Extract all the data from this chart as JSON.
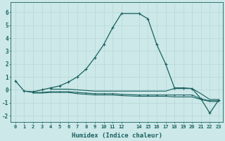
{
  "xlabel": "Humidex (Indice chaleur)",
  "background_color": "#cce8e8",
  "grid_color": "#b8d8d8",
  "line_color": "#1a6060",
  "xlim": [
    -0.5,
    23.5
  ],
  "ylim": [
    -2.5,
    6.8
  ],
  "xticks": [
    0,
    1,
    2,
    3,
    4,
    5,
    6,
    7,
    8,
    9,
    10,
    11,
    12,
    14,
    15,
    16,
    17,
    18,
    19,
    20,
    21,
    22,
    23
  ],
  "yticks": [
    -2,
    -1,
    0,
    1,
    2,
    3,
    4,
    5,
    6
  ],
  "series_main": [
    [
      0,
      0.7
    ],
    [
      1,
      -0.1
    ],
    [
      2,
      -0.15
    ],
    [
      3,
      0.0
    ],
    [
      4,
      0.15
    ],
    [
      5,
      0.3
    ],
    [
      6,
      0.6
    ],
    [
      7,
      1.0
    ],
    [
      8,
      1.6
    ],
    [
      9,
      2.5
    ],
    [
      10,
      3.5
    ],
    [
      11,
      4.8
    ],
    [
      12,
      5.9
    ],
    [
      14,
      5.9
    ],
    [
      15,
      5.5
    ],
    [
      16,
      3.5
    ],
    [
      17,
      2.0
    ],
    [
      18,
      0.15
    ],
    [
      19,
      0.15
    ],
    [
      20,
      0.1
    ],
    [
      21,
      -0.7
    ],
    [
      22,
      -1.8
    ],
    [
      23,
      -0.8
    ]
  ],
  "series2": [
    [
      1,
      -0.1
    ],
    [
      2,
      -0.2
    ],
    [
      3,
      -0.2
    ],
    [
      4,
      -0.15
    ],
    [
      5,
      -0.15
    ],
    [
      6,
      -0.15
    ],
    [
      7,
      -0.2
    ],
    [
      8,
      -0.25
    ],
    [
      9,
      -0.3
    ],
    [
      10,
      -0.3
    ],
    [
      11,
      -0.3
    ],
    [
      12,
      -0.35
    ],
    [
      14,
      -0.4
    ],
    [
      15,
      -0.4
    ],
    [
      16,
      -0.4
    ],
    [
      17,
      -0.4
    ],
    [
      18,
      -0.4
    ],
    [
      19,
      -0.4
    ],
    [
      20,
      -0.4
    ],
    [
      21,
      -0.7
    ],
    [
      22,
      -0.85
    ],
    [
      23,
      -0.85
    ]
  ],
  "series3": [
    [
      2,
      -0.25
    ],
    [
      3,
      -0.25
    ],
    [
      4,
      -0.2
    ],
    [
      5,
      -0.2
    ],
    [
      6,
      -0.2
    ],
    [
      7,
      -0.3
    ],
    [
      8,
      -0.35
    ],
    [
      9,
      -0.4
    ],
    [
      10,
      -0.4
    ],
    [
      11,
      -0.4
    ],
    [
      12,
      -0.45
    ],
    [
      14,
      -0.5
    ],
    [
      15,
      -0.5
    ],
    [
      16,
      -0.5
    ],
    [
      17,
      -0.5
    ],
    [
      18,
      -0.55
    ],
    [
      19,
      -0.55
    ],
    [
      20,
      -0.55
    ],
    [
      21,
      -0.75
    ],
    [
      22,
      -0.9
    ],
    [
      23,
      -0.9
    ]
  ],
  "series4": [
    [
      4,
      0.05
    ],
    [
      5,
      0.05
    ],
    [
      6,
      0.05
    ],
    [
      7,
      0.0
    ],
    [
      8,
      -0.05
    ],
    [
      9,
      -0.1
    ],
    [
      10,
      -0.1
    ],
    [
      11,
      -0.1
    ],
    [
      12,
      -0.1
    ],
    [
      14,
      -0.1
    ],
    [
      15,
      -0.1
    ],
    [
      16,
      -0.1
    ],
    [
      17,
      -0.1
    ],
    [
      18,
      0.1
    ],
    [
      19,
      0.1
    ],
    [
      20,
      0.1
    ],
    [
      21,
      -0.3
    ],
    [
      22,
      -0.75
    ],
    [
      23,
      -0.75
    ]
  ]
}
